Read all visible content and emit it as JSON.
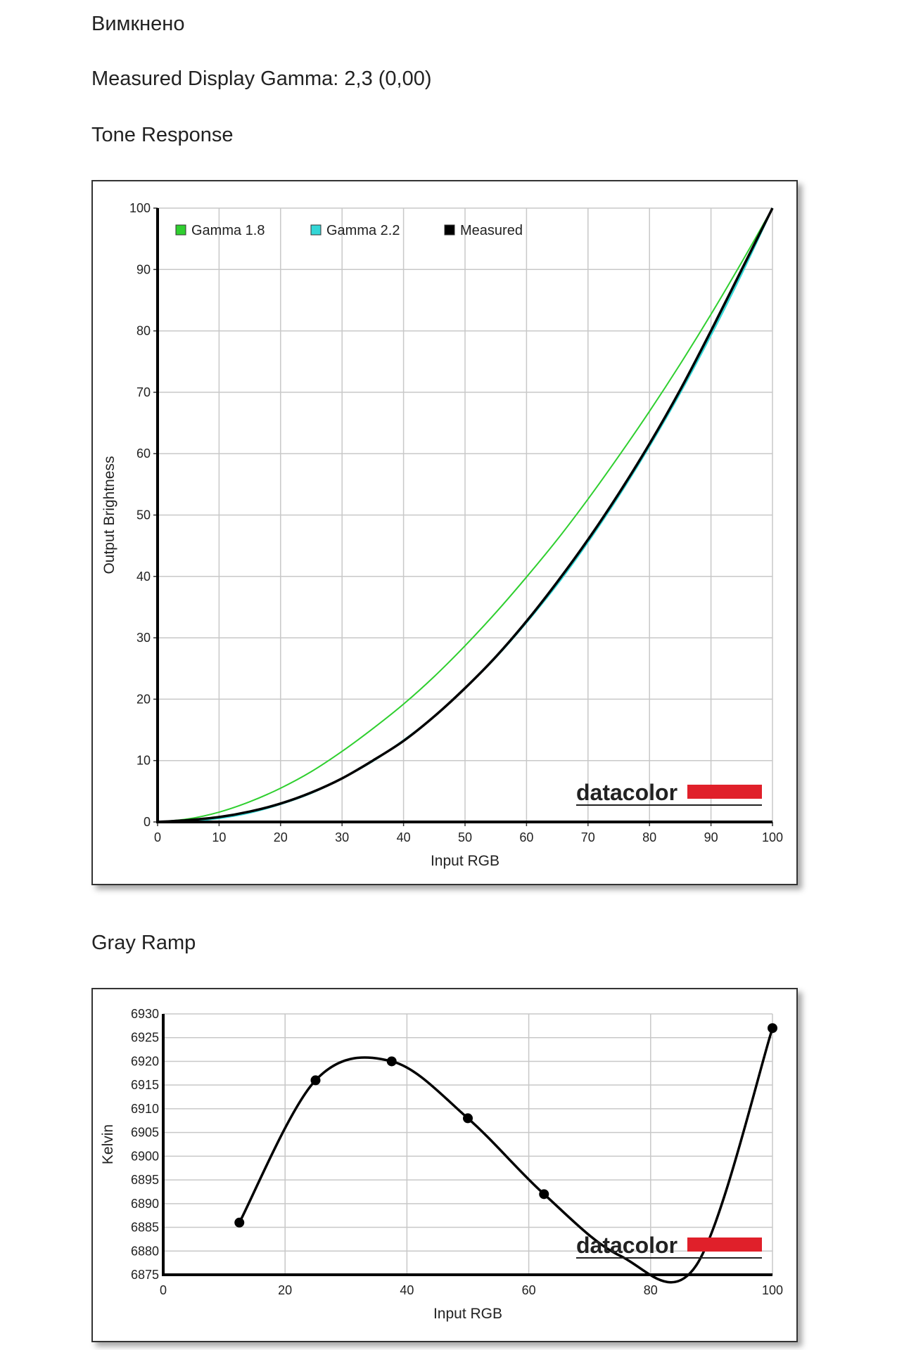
{
  "headings": {
    "status": "Вимкнено",
    "gamma": "Measured Display Gamma: 2,3 (0,00)",
    "tone_title": "Tone Response",
    "gray_title": "Gray Ramp"
  },
  "colors": {
    "gamma18": "#2fcf2f",
    "gamma22": "#33d6d6",
    "measured": "#000000",
    "brand_red": "#e0202a"
  },
  "chart_data": [
    {
      "type": "line",
      "xlabel": "Input RGB",
      "ylabel": "Output Brightness",
      "xlim": [
        0,
        100
      ],
      "ylim": [
        0,
        100
      ],
      "x_ticks": [
        "0",
        "10",
        "20",
        "30",
        "40",
        "50",
        "60",
        "70",
        "80",
        "90",
        "100"
      ],
      "y_ticks": [
        "0",
        "10",
        "20",
        "30",
        "40",
        "50",
        "60",
        "70",
        "80",
        "90",
        "100"
      ],
      "grid": true,
      "legend": "top-left",
      "watermark": "datacolor",
      "series": [
        {
          "name": "Gamma 1.8",
          "color": "#2fcf2f",
          "x": [
            0,
            5,
            10,
            15,
            20,
            25,
            30,
            35,
            40,
            45,
            50,
            55,
            60,
            65,
            70,
            75,
            80,
            85,
            90,
            95,
            100
          ],
          "y": [
            0,
            0.5,
            1.6,
            3.3,
            5.5,
            8.2,
            11.5,
            15.2,
            19.2,
            23.7,
            28.7,
            34.1,
            39.9,
            46.0,
            52.6,
            59.6,
            66.9,
            74.6,
            82.7,
            91.2,
            100
          ]
        },
        {
          "name": "Gamma 2.2",
          "color": "#33d6d6",
          "x": [
            0,
            5,
            10,
            15,
            20,
            25,
            30,
            35,
            40,
            45,
            50,
            55,
            60,
            65,
            70,
            75,
            80,
            85,
            90,
            95,
            100
          ],
          "y": [
            0,
            0.1,
            0.6,
            1.5,
            2.9,
            4.7,
            7.1,
            9.9,
            13.3,
            17.2,
            21.8,
            26.8,
            32.5,
            38.7,
            45.6,
            53.1,
            61.2,
            69.9,
            79.3,
            89.3,
            100
          ]
        },
        {
          "name": "Measured",
          "color": "#000000",
          "x": [
            0,
            5,
            10,
            15,
            20,
            25,
            30,
            35,
            40,
            45,
            50,
            55,
            60,
            65,
            70,
            75,
            80,
            85,
            90,
            95,
            100
          ],
          "y": [
            0,
            0.3,
            0.8,
            1.7,
            3.0,
            4.8,
            7.1,
            10.0,
            13.2,
            17.2,
            21.8,
            26.9,
            32.7,
            39.1,
            46.0,
            53.5,
            61.6,
            70.4,
            80.0,
            90.0,
            100
          ]
        }
      ]
    },
    {
      "type": "line",
      "xlabel": "Input RGB",
      "ylabel": "Kelvin",
      "xlim": [
        0,
        100
      ],
      "ylim": [
        6875,
        6930
      ],
      "x_ticks": [
        "0",
        "20",
        "40",
        "60",
        "80",
        "100"
      ],
      "y_ticks": [
        "6875",
        "6880",
        "6885",
        "6890",
        "6895",
        "6900",
        "6905",
        "6910",
        "6915",
        "6920",
        "6925",
        "6930"
      ],
      "grid": true,
      "watermark": "datacolor",
      "series": [
        {
          "color": "#000000",
          "x": [
            12.5,
            25,
            37.5,
            50,
            62.5,
            75,
            87.5,
            100
          ],
          "y": [
            6886,
            6916,
            6920,
            6908,
            6892,
            6879,
            6877,
            6927
          ],
          "markers": [
            true,
            true,
            true,
            true,
            true,
            false,
            false,
            true
          ]
        }
      ]
    }
  ]
}
